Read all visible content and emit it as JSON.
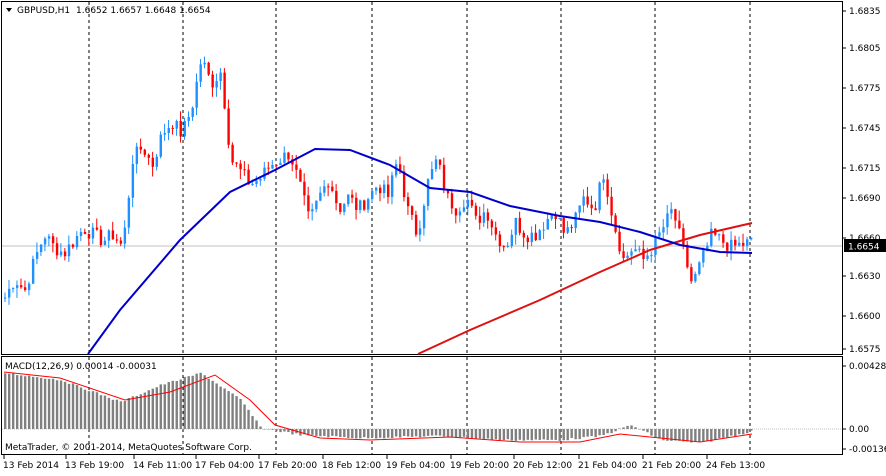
{
  "symbol_info": {
    "symbol": "GBPUSD,H1",
    "ohlc": "1.6652 1.6657 1.6648 1.6654",
    "collapse_icon": "triangle-down-icon"
  },
  "price_axis": {
    "ticks": [
      "1.6835",
      "1.6805",
      "1.6775",
      "1.6745",
      "1.6715",
      "1.6690",
      "1.6660",
      "1.6630",
      "1.6600",
      "1.6575"
    ],
    "current_price": "1.6654",
    "current_price_value": 1.6654
  },
  "macd": {
    "label": "MACD(12,26,9) 0.00014 -0.00031",
    "ticks": [
      "0.00428",
      "0.00",
      "-0.00136"
    ]
  },
  "time_axis": {
    "labels": [
      "13 Feb 2014",
      "13 Feb 19:00",
      "14 Feb 11:00",
      "17 Feb 04:00",
      "17 Feb 20:00",
      "18 Feb 12:00",
      "19 Feb 04:00",
      "19 Feb 20:00",
      "20 Feb 12:00",
      "21 Feb 04:00",
      "21 Feb 20:00",
      "24 Feb 13:00"
    ]
  },
  "copyright": "MetaTrader, © 2001-2014, MetaQuotes Software Corp.",
  "colors": {
    "bull": "#1e90ff",
    "bear": "#ff0000",
    "ma_fast": "#0000cd",
    "ma_slow": "#dd1111",
    "histogram": "#808080",
    "signal": "#ff0000",
    "grid": "#000000",
    "price_label_bg": "#000000",
    "price_label_fg": "#ffffff"
  },
  "chart_data": {
    "type": "candlestick",
    "ylim": [
      1.6565,
      1.6845
    ],
    "candles_close_path": [
      1.661,
      1.6625,
      1.6615,
      1.664,
      1.666,
      1.665,
      1.6645,
      1.6655,
      1.6665,
      1.666,
      1.6655,
      1.666,
      1.665,
      1.672,
      1.673,
      1.6715,
      1.674,
      1.675,
      1.674,
      1.676,
      1.68,
      1.678,
      1.679,
      1.672,
      1.671,
      1.67,
      1.6705,
      1.6715,
      1.672,
      1.6725,
      1.67,
      1.667,
      1.669,
      1.6705,
      1.668,
      1.669,
      1.668,
      1.669,
      1.67,
      1.669,
      1.672,
      1.668,
      1.666,
      1.67,
      1.672,
      1.669,
      1.668,
      1.669,
      1.667,
      1.668,
      1.666,
      1.665,
      1.667,
      1.666,
      1.666,
      1.667,
      1.668,
      1.666,
      1.667,
      1.669,
      1.668,
      1.671,
      1.667,
      1.664,
      1.665,
      1.664,
      1.665,
      1.6665,
      1.668,
      1.665,
      1.662,
      1.664,
      1.666,
      1.6655,
      1.665,
      1.6652,
      1.6654
    ]
  }
}
